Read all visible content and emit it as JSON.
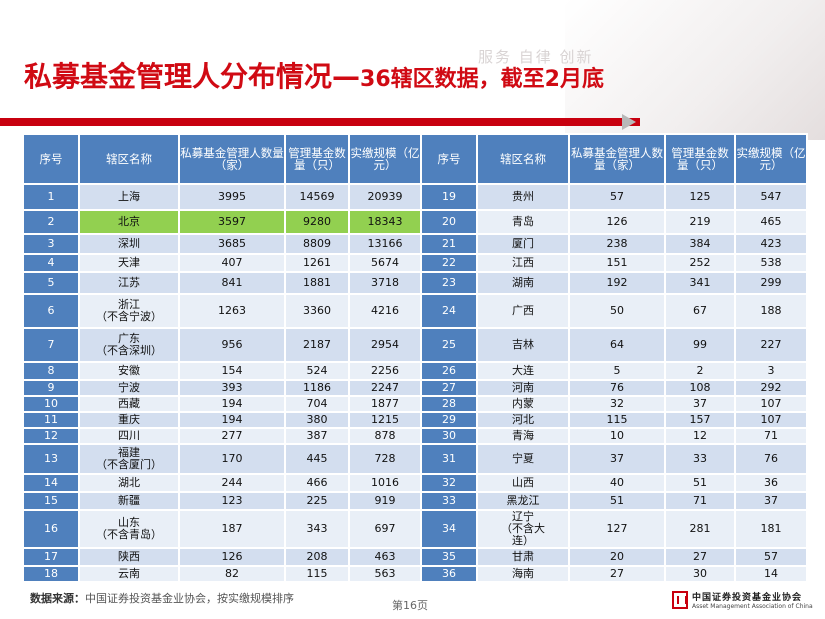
{
  "motto": "服务 自律 创新",
  "title": {
    "main": "私募基金管理人分布情况—",
    "sub": "36辖区数据，截至2月底"
  },
  "headers": [
    "序号",
    "辖区名称",
    "私募基金管理人数量（家）",
    "管理基金数量（只）",
    "实缴规模（亿元）"
  ],
  "colors": {
    "header": "#4f80bd",
    "highlight": "#92d050",
    "title": "#d00a13"
  },
  "left_rows": [
    {
      "no": "1",
      "name": "上海",
      "managers": "3995",
      "funds": "14569",
      "scale": "20939"
    },
    {
      "no": "2",
      "name": "北京",
      "managers": "3597",
      "funds": "9280",
      "scale": "18343",
      "highlight": true
    },
    {
      "no": "3",
      "name": "深圳",
      "managers": "3685",
      "funds": "8809",
      "scale": "13166"
    },
    {
      "no": "4",
      "name": "天津",
      "managers": "407",
      "funds": "1261",
      "scale": "5674"
    },
    {
      "no": "5",
      "name": "江苏",
      "managers": "841",
      "funds": "1881",
      "scale": "3718"
    },
    {
      "no": "6",
      "name": "浙江\n（不含宁波）",
      "managers": "1263",
      "funds": "3360",
      "scale": "4216"
    },
    {
      "no": "7",
      "name": "广东\n（不含深圳）",
      "managers": "956",
      "funds": "2187",
      "scale": "2954"
    },
    {
      "no": "8",
      "name": "安徽",
      "managers": "154",
      "funds": "524",
      "scale": "2256"
    },
    {
      "no": "9",
      "name": "宁波",
      "managers": "393",
      "funds": "1186",
      "scale": "2247"
    },
    {
      "no": "10",
      "name": "西藏",
      "managers": "194",
      "funds": "704",
      "scale": "1877"
    },
    {
      "no": "11",
      "name": "重庆",
      "managers": "194",
      "funds": "380",
      "scale": "1215"
    },
    {
      "no": "12",
      "name": "四川",
      "managers": "277",
      "funds": "387",
      "scale": "878"
    },
    {
      "no": "13",
      "name": "福建\n（不含厦门）",
      "managers": "170",
      "funds": "445",
      "scale": "728"
    },
    {
      "no": "14",
      "name": "湖北",
      "managers": "244",
      "funds": "466",
      "scale": "1016"
    },
    {
      "no": "15",
      "name": "新疆",
      "managers": "123",
      "funds": "225",
      "scale": "919"
    },
    {
      "no": "16",
      "name": "山东\n（不含青岛）",
      "managers": "187",
      "funds": "343",
      "scale": "697"
    },
    {
      "no": "17",
      "name": "陕西",
      "managers": "126",
      "funds": "208",
      "scale": "463"
    },
    {
      "no": "18",
      "name": "云南",
      "managers": "82",
      "funds": "115",
      "scale": "563"
    }
  ],
  "right_rows": [
    {
      "no": "19",
      "name": "贵州",
      "managers": "57",
      "funds": "125",
      "scale": "547"
    },
    {
      "no": "20",
      "name": "青岛",
      "managers": "126",
      "funds": "219",
      "scale": "465"
    },
    {
      "no": "21",
      "name": "厦门",
      "managers": "238",
      "funds": "384",
      "scale": "423"
    },
    {
      "no": "22",
      "name": "江西",
      "managers": "151",
      "funds": "252",
      "scale": "538"
    },
    {
      "no": "23",
      "name": "湖南",
      "managers": "192",
      "funds": "341",
      "scale": "299"
    },
    {
      "no": "24",
      "name": "广西",
      "managers": "50",
      "funds": "67",
      "scale": "188"
    },
    {
      "no": "25",
      "name": "吉林",
      "managers": "64",
      "funds": "99",
      "scale": "227"
    },
    {
      "no": "26",
      "name": "大连",
      "managers": "5",
      "funds": "2",
      "scale": "3"
    },
    {
      "no": "27",
      "name": "河南",
      "managers": "76",
      "funds": "108",
      "scale": "292"
    },
    {
      "no": "28",
      "name": "内蒙",
      "managers": "32",
      "funds": "37",
      "scale": "107"
    },
    {
      "no": "29",
      "name": "河北",
      "managers": "115",
      "funds": "157",
      "scale": "107"
    },
    {
      "no": "30",
      "name": "青海",
      "managers": "10",
      "funds": "12",
      "scale": "71"
    },
    {
      "no": "31",
      "name": "宁夏",
      "managers": "37",
      "funds": "33",
      "scale": "76"
    },
    {
      "no": "32",
      "name": "山西",
      "managers": "40",
      "funds": "51",
      "scale": "36"
    },
    {
      "no": "33",
      "name": "黑龙江",
      "managers": "51",
      "funds": "71",
      "scale": "37"
    },
    {
      "no": "34",
      "name": "辽宁\n（不含大\n连）",
      "managers": "127",
      "funds": "281",
      "scale": "181"
    },
    {
      "no": "35",
      "name": "甘肃",
      "managers": "20",
      "funds": "27",
      "scale": "57"
    },
    {
      "no": "36",
      "name": "海南",
      "managers": "27",
      "funds": "30",
      "scale": "14"
    }
  ],
  "source": {
    "label": "数据来源：",
    "text": "中国证券投资基金业协会，按实缴规模排序"
  },
  "page_number": "第16页",
  "logo": {
    "cn": "中国证券投资基金业协会",
    "en": "Asset Management Association of China"
  }
}
